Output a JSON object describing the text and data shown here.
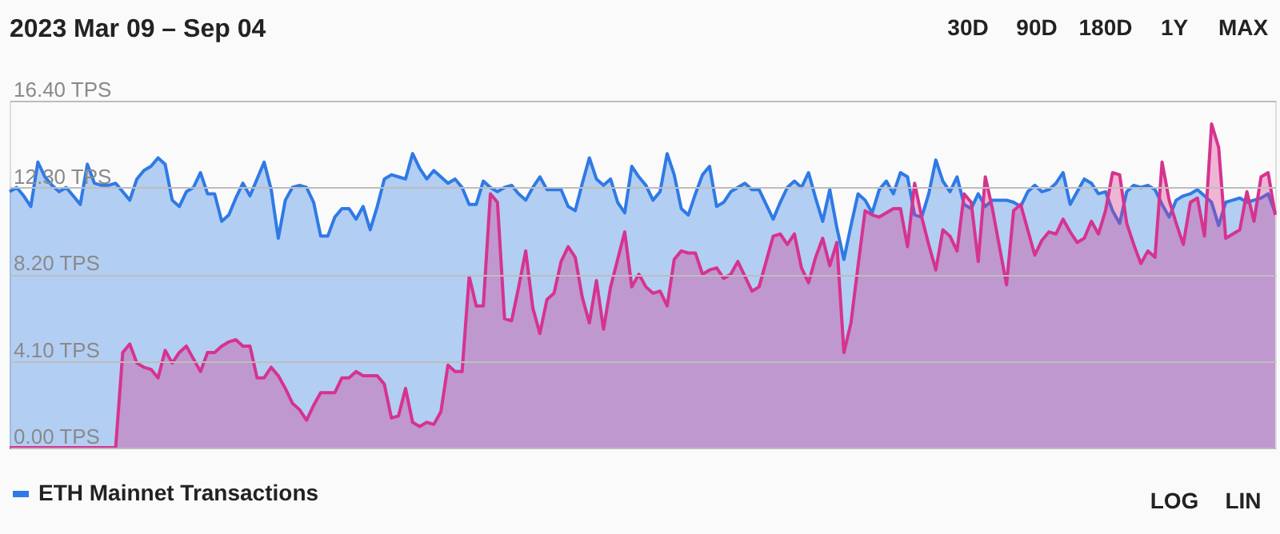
{
  "chart_data": {
    "type": "area",
    "title": "2023 Mar 09 – Sep 04",
    "annotations": [
      "30D",
      "90D",
      "180D",
      "1Y",
      "MAX",
      "LOG",
      "LIN"
    ],
    "categories": [
      null,
      null,
      null,
      null,
      null,
      null,
      null,
      null,
      null,
      null,
      null,
      null,
      null,
      null,
      null,
      null,
      null,
      null,
      null,
      null,
      null,
      null,
      null,
      null,
      null,
      null,
      null,
      null,
      null,
      null,
      null,
      null,
      null,
      null,
      null,
      null,
      null,
      null,
      null,
      null,
      null,
      null,
      null,
      null,
      null,
      null,
      null,
      null,
      null,
      null,
      null,
      null,
      null,
      null,
      null,
      null,
      null,
      null,
      null,
      null,
      null,
      null,
      null,
      null,
      null,
      null,
      null,
      null,
      null,
      null,
      null,
      null,
      null,
      null,
      null,
      null,
      null,
      null,
      null,
      null,
      null,
      null,
      null,
      null,
      null,
      null,
      null,
      null,
      null,
      null,
      null,
      null,
      null,
      null,
      null,
      null,
      null,
      null,
      null,
      null,
      null,
      null,
      null,
      null,
      null,
      null,
      null,
      null,
      null,
      null,
      null,
      null,
      null,
      null,
      null,
      null,
      null,
      null,
      null,
      null,
      null,
      null,
      null,
      null,
      null,
      null,
      null,
      null,
      null,
      null,
      null,
      null,
      null,
      null,
      null,
      null,
      null,
      null,
      null,
      null,
      null,
      null,
      null,
      null,
      null,
      null,
      null,
      null,
      null,
      null,
      null,
      null,
      null,
      null,
      null,
      null,
      null,
      null,
      null,
      null,
      null,
      null,
      null,
      null,
      null,
      null,
      null,
      null,
      null,
      null,
      null,
      null,
      null,
      null,
      null,
      null,
      null,
      null,
      null,
      null
    ],
    "ylim": [
      0,
      16.4
    ],
    "yticks": [
      {
        "value": 0,
        "label": "0.00 TPS"
      },
      {
        "value": 4.1,
        "label": "4.10 TPS"
      },
      {
        "value": 8.2,
        "label": "8.20 TPS"
      },
      {
        "value": 12.3,
        "label": "12.30 TPS"
      },
      {
        "value": 16.4,
        "label": "16.40 TPS"
      }
    ],
    "tick_labels": "y",
    "grid": "y",
    "legend": "bottom left",
    "line_style": "solid",
    "series": [
      {
        "name": "ETH Mainnet Transactions",
        "color": "#2f7ae5",
        "values": [
          12.1,
          12.3,
          11.9,
          11.4,
          13.5,
          12.8,
          12.4,
          12.1,
          12.3,
          11.9,
          11.5,
          13.4,
          12.5,
          12.4,
          12.4,
          12.5,
          12.1,
          11.7,
          12.7,
          13.1,
          13.3,
          13.7,
          13.4,
          11.7,
          11.4,
          12.1,
          12.3,
          13.0,
          12.0,
          12.0,
          10.7,
          11.0,
          11.8,
          12.5,
          11.9,
          12.7,
          13.5,
          12.2,
          9.9,
          11.7,
          12.3,
          12.4,
          12.3,
          11.6,
          10.0,
          10.0,
          10.9,
          11.3,
          11.3,
          10.8,
          11.4,
          10.3,
          11.4,
          12.7,
          12.9,
          12.8,
          12.7,
          13.9,
          13.2,
          12.7,
          13.1,
          12.8,
          12.5,
          12.7,
          12.3,
          11.5,
          11.5,
          12.6,
          12.3,
          12.1,
          12.3,
          12.4,
          12.0,
          11.7,
          12.3,
          12.8,
          12.2,
          12.2,
          12.2,
          11.4,
          11.2,
          12.5,
          13.7,
          12.7,
          12.4,
          12.7,
          11.6,
          11.1,
          13.3,
          12.8,
          12.4,
          11.7,
          12.1,
          13.9,
          12.9,
          11.3,
          11.0,
          12.0,
          12.9,
          13.3,
          11.4,
          11.6,
          12.1,
          12.3,
          12.5,
          12.2,
          12.2,
          11.5,
          10.8,
          11.6,
          12.3,
          12.6,
          12.3,
          13.0,
          11.8,
          10.7,
          12.2,
          10.4,
          8.9,
          10.5,
          12.0,
          11.7,
          11.1,
          12.2,
          12.6,
          12.0,
          13.0,
          12.8,
          11.0,
          10.9,
          12.0,
          13.6,
          12.6,
          12.1,
          12.8,
          11.5,
          11.3,
          12.0,
          11.4,
          11.7,
          11.7,
          11.7,
          11.6,
          11.4,
          12.1,
          12.4,
          12.1,
          12.2,
          12.5,
          13.0,
          11.5,
          12.1,
          12.7,
          12.5,
          12.0,
          12.1,
          11.2,
          10.6,
          12.1,
          12.4,
          12.3,
          12.4,
          12.2,
          11.5,
          10.9,
          11.7,
          11.9,
          12.0,
          12.2,
          11.9,
          11.6,
          10.5,
          11.6,
          11.7,
          11.8,
          11.6,
          11.7,
          11.8,
          12.0,
          11.1
        ]
      },
      {
        "color": "#d6338f",
        "values": [
          0,
          0,
          0,
          0,
          0,
          0,
          0,
          0,
          0,
          0,
          0,
          0,
          0,
          0,
          0,
          0,
          4.5,
          4.9,
          4.0,
          3.8,
          3.7,
          3.3,
          4.6,
          4.0,
          4.5,
          4.8,
          4.2,
          3.6,
          4.5,
          4.5,
          4.8,
          5.0,
          5.1,
          4.8,
          4.8,
          3.3,
          3.3,
          3.8,
          3.4,
          2.8,
          2.1,
          1.8,
          1.3,
          2.0,
          2.6,
          2.6,
          2.6,
          3.3,
          3.3,
          3.6,
          3.4,
          3.4,
          3.4,
          3.0,
          1.4,
          1.5,
          2.8,
          1.2,
          1.0,
          1.2,
          1.1,
          1.7,
          3.9,
          3.6,
          3.6,
          8.1,
          6.7,
          6.7,
          12.0,
          11.6,
          6.1,
          6.0,
          7.6,
          9.3,
          6.6,
          5.4,
          7.0,
          7.3,
          8.8,
          9.5,
          9.0,
          7.1,
          5.9,
          7.9,
          5.6,
          7.6,
          8.9,
          10.2,
          7.6,
          8.2,
          7.6,
          7.3,
          7.4,
          6.7,
          8.9,
          9.3,
          9.2,
          9.2,
          8.2,
          8.4,
          8.5,
          8.0,
          8.2,
          8.8,
          8.1,
          7.4,
          7.6,
          8.8,
          10.0,
          10.1,
          9.6,
          10.1,
          8.5,
          7.8,
          9.0,
          9.9,
          8.6,
          9.7,
          4.5,
          5.9,
          8.6,
          11.2,
          11.0,
          10.9,
          11.1,
          11.3,
          11.3,
          9.5,
          12.5,
          10.9,
          9.6,
          8.4,
          10.3,
          10.0,
          9.3,
          12.0,
          11.6,
          8.8,
          12.8,
          11.3,
          9.5,
          7.7,
          11.2,
          11.5,
          10.3,
          9.1,
          9.8,
          10.2,
          10.1,
          10.8,
          10.2,
          9.7,
          9.9,
          10.7,
          10.1,
          11.2,
          13.0,
          12.9,
          10.6,
          9.6,
          8.7,
          9.3,
          9.0,
          13.5,
          11.7,
          10.6,
          9.6,
          11.6,
          11.8,
          10.0,
          15.3,
          14.2,
          9.9,
          10.1,
          10.3,
          12.1,
          10.7,
          12.8,
          13.0,
          11.0
        ]
      }
    ]
  }
}
